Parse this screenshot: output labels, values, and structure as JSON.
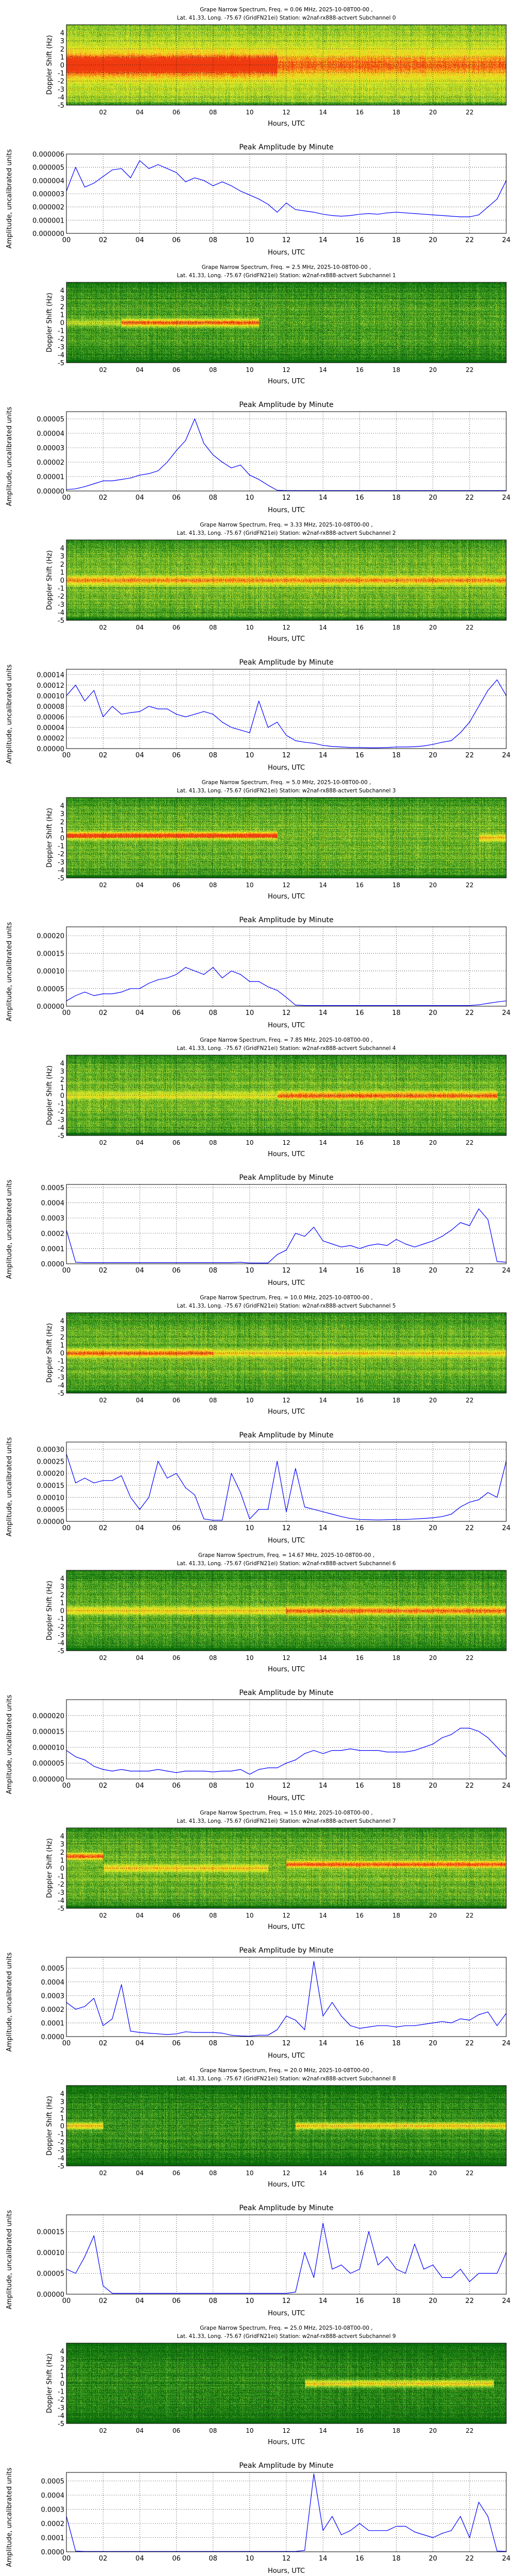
{
  "shared": {
    "spectrogram_ylabel": "Doppler Shift (Hz)",
    "spectrogram_yticks": [
      "-5",
      "-4",
      "-3",
      "-2",
      "-1",
      "0",
      "1",
      "2",
      "3",
      "4"
    ],
    "spectrogram_xticks": [
      "02",
      "04",
      "06",
      "08",
      "10",
      "12",
      "14",
      "16",
      "18",
      "20",
      "22"
    ],
    "xlabel": "Hours, UTC",
    "amplitude_title": "Peak Amplitude by Minute",
    "amplitude_ylabel": "Amplitude, uncalibrated units",
    "amplitude_xticks": [
      "00",
      "02",
      "04",
      "06",
      "08",
      "10",
      "12",
      "14",
      "16",
      "18",
      "20",
      "22",
      "24"
    ],
    "hours": [
      0,
      0.5,
      1,
      1.5,
      2,
      2.5,
      3,
      3.5,
      4,
      4.5,
      5,
      5.5,
      6,
      6.5,
      7,
      7.5,
      8,
      8.5,
      9,
      9.5,
      10,
      10.5,
      11,
      11.5,
      12,
      12.5,
      13,
      13.5,
      14,
      14.5,
      15,
      15.5,
      16,
      16.5,
      17,
      17.5,
      18,
      18.5,
      19,
      19.5,
      20,
      20.5,
      21,
      21.5,
      22,
      22.5,
      23,
      23.5,
      24
    ],
    "line_color": "#0000ff",
    "colormap": [
      "#0a6a0a",
      "#3f9e22",
      "#a8d22e",
      "#eef020",
      "#f8a820",
      "#f03a10"
    ]
  },
  "chart_data": [
    {
      "type": "heatmap",
      "title_line1": "Grape Narrow Spectrum, Freq. = 0.06 MHz, 2025-10-08T00-00 ,",
      "title_line2": "Lat.  41.33, Long. -75.67 (GridFN21ei) Station: w2naf-rx888-actvert Subchannel 0",
      "xlim": [
        0,
        24
      ],
      "ylim": [
        -5,
        5
      ],
      "background": 0.5,
      "band_width_hz": 1.3,
      "signal_segments": [
        {
          "hours": [
            0,
            11.5
          ],
          "doppler_hz": 0,
          "strength": 0.85
        },
        {
          "hours": [
            11.5,
            24
          ],
          "doppler_hz": 0,
          "strength": 0.45
        }
      ]
    },
    {
      "type": "line",
      "ylim": [
        0,
        6e-06
      ],
      "yticks": [
        "0.000000",
        "0.000001",
        "0.000002",
        "0.000003",
        "0.000004",
        "0.000005",
        "0.000006"
      ],
      "xlim": [
        0,
        24
      ],
      "values": [
        3.2e-06,
        5e-06,
        3.5e-06,
        3.8e-06,
        4.3e-06,
        4.8e-06,
        4.9e-06,
        4.2e-06,
        5.5e-06,
        4.9e-06,
        5.2e-06,
        4.9e-06,
        4.6e-06,
        3.9e-06,
        4.2e-06,
        4e-06,
        3.6e-06,
        3.9e-06,
        3.6e-06,
        3.2e-06,
        2.9e-06,
        2.6e-06,
        2.2e-06,
        1.6e-06,
        2.3e-06,
        1.8e-06,
        1.7e-06,
        1.6e-06,
        1.45e-06,
        1.35e-06,
        1.3e-06,
        1.35e-06,
        1.45e-06,
        1.5e-06,
        1.45e-06,
        1.55e-06,
        1.6e-06,
        1.55e-06,
        1.5e-06,
        1.45e-06,
        1.4e-06,
        1.35e-06,
        1.3e-06,
        1.25e-06,
        1.25e-06,
        1.4e-06,
        2e-06,
        2.6e-06,
        4e-06
      ]
    },
    {
      "type": "heatmap",
      "title_line1": "Grape Narrow Spectrum, Freq. = 2.5 MHz, 2025-10-08T00-00 ,",
      "title_line2": "Lat.  41.33, Long. -75.67 (GridFN21ei) Station: w2naf-rx888-actvert Subchannel 1",
      "xlim": [
        0,
        24
      ],
      "ylim": [
        -5,
        5
      ],
      "background": 0.22,
      "band_width_hz": 0.45,
      "signal_segments": [
        {
          "hours": [
            3,
            10.5
          ],
          "doppler_hz": 0,
          "strength": 0.75
        },
        {
          "hours": [
            0,
            3
          ],
          "doppler_hz": 0,
          "strength": 0.25
        }
      ]
    },
    {
      "type": "line",
      "ylim": [
        0,
        5.5e-05
      ],
      "yticks": [
        "0.00000",
        "0.00001",
        "0.00002",
        "0.00003",
        "0.00004",
        "0.00005"
      ],
      "xlim": [
        0,
        24
      ],
      "values": [
        1e-06,
        1.5e-06,
        3e-06,
        5e-06,
        7e-06,
        7e-06,
        8e-06,
        9e-06,
        1.1e-05,
        1.2e-05,
        1.4e-05,
        2e-05,
        2.8e-05,
        3.5e-05,
        5e-05,
        3.3e-05,
        2.5e-05,
        2e-05,
        1.6e-05,
        1.8e-05,
        1.1e-05,
        8e-06,
        4e-06,
        5e-07,
        3e-07,
        3e-07,
        3e-07,
        3e-07,
        3e-07,
        3e-07,
        3e-07,
        3e-07,
        3e-07,
        3e-07,
        3e-07,
        3e-07,
        3e-07,
        3e-07,
        3e-07,
        3e-07,
        3e-07,
        3e-07,
        3e-07,
        3e-07,
        3e-07,
        3e-07,
        3e-07,
        3e-07,
        3e-07
      ]
    },
    {
      "type": "heatmap",
      "title_line1": "Grape Narrow Spectrum, Freq. = 3.33 MHz, 2025-10-08T00-00 ,",
      "title_line2": "Lat.  41.33, Long. -75.67 (GridFN21ei) Station: w2naf-rx888-actvert Subchannel 2",
      "xlim": [
        0,
        24
      ],
      "ylim": [
        -5,
        5
      ],
      "background": 0.32,
      "band_width_hz": 0.5,
      "signal_segments": [
        {
          "hours": [
            0,
            24
          ],
          "doppler_hz": 0,
          "strength": 0.55
        }
      ]
    },
    {
      "type": "line",
      "ylim": [
        0,
        0.00015
      ],
      "yticks": [
        "0.00000",
        "0.00002",
        "0.00004",
        "0.00006",
        "0.00008",
        "0.00010",
        "0.00012",
        "0.00014"
      ],
      "xlim": [
        0,
        24
      ],
      "values": [
        0.0001,
        0.00012,
        9e-05,
        0.00011,
        6e-05,
        8e-05,
        6.5e-05,
        6.8e-05,
        7e-05,
        8e-05,
        7.5e-05,
        7.5e-05,
        6.5e-05,
        6e-05,
        6.5e-05,
        7e-05,
        6.5e-05,
        5e-05,
        4e-05,
        3.5e-05,
        3e-05,
        9e-05,
        4e-05,
        5e-05,
        2.5e-05,
        1.5e-05,
        1.2e-05,
        1e-05,
        6e-06,
        4e-06,
        3e-06,
        2e-06,
        2e-06,
        1.5e-06,
        1.5e-06,
        2e-06,
        3e-06,
        3e-06,
        3.5e-06,
        5e-06,
        8e-06,
        1.2e-05,
        1.5e-05,
        3e-05,
        5e-05,
        8e-05,
        0.00011,
        0.00013,
        0.0001
      ]
    },
    {
      "type": "heatmap",
      "title_line1": "Grape Narrow Spectrum, Freq. = 5.0 MHz, 2025-10-08T00-00 ,",
      "title_line2": "Lat.  41.33, Long. -75.67 (GridFN21ei) Station: w2naf-rx888-actvert Subchannel 3",
      "xlim": [
        0,
        24
      ],
      "ylim": [
        -5,
        5
      ],
      "background": 0.3,
      "band_width_hz": 0.4,
      "signal_segments": [
        {
          "hours": [
            0,
            11.5
          ],
          "doppler_hz": 0.3,
          "strength": 0.85
        },
        {
          "hours": [
            22.5,
            24
          ],
          "doppler_hz": 0,
          "strength": 0.45
        }
      ]
    },
    {
      "type": "line",
      "ylim": [
        0,
        0.000225
      ],
      "yticks": [
        "0.00000",
        "0.00005",
        "0.00010",
        "0.00015",
        "0.00020"
      ],
      "xlim": [
        0,
        24
      ],
      "values": [
        1.5e-05,
        3e-05,
        4e-05,
        3e-05,
        3.5e-05,
        3.5e-05,
        4e-05,
        5e-05,
        5e-05,
        6.5e-05,
        7.5e-05,
        8e-05,
        9e-05,
        0.00011,
        0.0001,
        9e-05,
        0.00011,
        8e-05,
        0.0001,
        9e-05,
        7e-05,
        7e-05,
        5.5e-05,
        4.5e-05,
        2.5e-05,
        3e-06,
        2e-06,
        2e-06,
        2e-06,
        2e-06,
        2e-06,
        2e-06,
        2e-06,
        2e-06,
        2e-06,
        2e-06,
        2e-06,
        2e-06,
        2e-06,
        2e-06,
        2e-06,
        2e-06,
        2e-06,
        2e-06,
        2e-06,
        4e-06,
        8e-06,
        1.2e-05,
        1.5e-05
      ]
    },
    {
      "type": "heatmap",
      "title_line1": "Grape Narrow Spectrum, Freq. = 7.85 MHz, 2025-10-08T00-00 ,",
      "title_line2": "Lat.  41.33, Long. -75.67 (GridFN21ei) Station: w2naf-rx888-actvert Subchannel 4",
      "xlim": [
        0,
        24
      ],
      "ylim": [
        -5,
        5
      ],
      "background": 0.3,
      "band_width_hz": 0.45,
      "signal_segments": [
        {
          "hours": [
            11.5,
            23.5
          ],
          "doppler_hz": 0,
          "strength": 0.7
        },
        {
          "hours": [
            0,
            11.5
          ],
          "doppler_hz": 0,
          "strength": 0.3
        }
      ]
    },
    {
      "type": "line",
      "ylim": [
        0,
        0.00052
      ],
      "yticks": [
        "0.0000",
        "0.0001",
        "0.0002",
        "0.0003",
        "0.0004",
        "0.0005"
      ],
      "xlim": [
        0,
        24
      ],
      "values": [
        0.00022,
        1e-05,
        8e-06,
        8e-06,
        8e-06,
        8e-06,
        8e-06,
        8e-06,
        8e-06,
        8e-06,
        8e-06,
        8e-06,
        8e-06,
        8e-06,
        8e-06,
        8e-06,
        8e-06,
        8e-06,
        8e-06,
        1e-05,
        5e-06,
        5e-06,
        5e-06,
        6e-05,
        9e-05,
        0.0002,
        0.00018,
        0.00024,
        0.00015,
        0.00013,
        0.00011,
        0.00012,
        0.0001,
        0.00012,
        0.00013,
        0.00012,
        0.00016,
        0.00013,
        0.00011,
        0.00013,
        0.00015,
        0.00018,
        0.00022,
        0.00027,
        0.00025,
        0.00036,
        0.00029,
        1.5e-05,
        1e-05
      ]
    },
    {
      "type": "heatmap",
      "title_line1": "Grape Narrow Spectrum, Freq. = 10.0 MHz, 2025-10-08T00-00 ,",
      "title_line2": "Lat.  41.33, Long. -75.67 (GridFN21ei) Station: w2naf-rx888-actvert Subchannel 5",
      "xlim": [
        0,
        24
      ],
      "ylim": [
        -5,
        5
      ],
      "background": 0.3,
      "band_width_hz": 0.45,
      "signal_segments": [
        {
          "hours": [
            0,
            8
          ],
          "doppler_hz": 0,
          "strength": 0.7
        },
        {
          "hours": [
            8,
            24
          ],
          "doppler_hz": 0,
          "strength": 0.45
        }
      ]
    },
    {
      "type": "line",
      "ylim": [
        0,
        0.00033
      ],
      "yticks": [
        "0.00000",
        "0.00005",
        "0.00010",
        "0.00015",
        "0.00020",
        "0.00025",
        "0.00030"
      ],
      "xlim": [
        0,
        24
      ],
      "values": [
        0.00028,
        0.00016,
        0.00018,
        0.00016,
        0.00017,
        0.00017,
        0.00019,
        0.0001,
        5e-05,
        0.0001,
        0.00025,
        0.00018,
        0.0002,
        0.00014,
        0.00011,
        1e-05,
        5e-06,
        5e-06,
        0.0002,
        0.00012,
        1e-05,
        5e-05,
        5e-05,
        0.00025,
        4e-05,
        0.00022,
        6e-05,
        5e-05,
        4e-05,
        3e-05,
        2e-05,
        1.2e-05,
        8e-06,
        7e-06,
        6e-06,
        7e-06,
        8e-06,
        8e-06,
        1e-05,
        1.2e-05,
        1.5e-05,
        2e-05,
        3e-05,
        6e-05,
        8e-05,
        9e-05,
        0.00012,
        0.0001,
        0.00025
      ]
    },
    {
      "type": "heatmap",
      "title_line1": "Grape Narrow Spectrum, Freq. = 14.67 MHz, 2025-10-08T00-00 ,",
      "title_line2": "Lat.  41.33, Long. -75.67 (GridFN21ei) Station: w2naf-rx888-actvert Subchannel 6",
      "xlim": [
        0,
        24
      ],
      "ylim": [
        -5,
        5
      ],
      "background": 0.25,
      "band_width_hz": 0.5,
      "signal_segments": [
        {
          "hours": [
            0,
            12
          ],
          "doppler_hz": 0,
          "strength": 0.45
        },
        {
          "hours": [
            12,
            24
          ],
          "doppler_hz": 0,
          "strength": 0.7
        }
      ]
    },
    {
      "type": "line",
      "ylim": [
        0,
        2.5e-05
      ],
      "yticks": [
        "0.000000",
        "0.000005",
        "0.000010",
        "0.000015",
        "0.000020"
      ],
      "xlim": [
        0,
        24
      ],
      "values": [
        9e-06,
        7e-06,
        6e-06,
        4e-06,
        3e-06,
        2.5e-06,
        3e-06,
        2.5e-06,
        2.5e-06,
        2.5e-06,
        3e-06,
        2.5e-06,
        2e-06,
        2.5e-06,
        2.5e-06,
        2.5e-06,
        2.2e-06,
        2.5e-06,
        2.5e-06,
        3e-06,
        1.5e-06,
        3e-06,
        3.5e-06,
        3.5e-06,
        5e-06,
        6e-06,
        8e-06,
        9e-06,
        8e-06,
        9e-06,
        9e-06,
        9.5e-06,
        9e-06,
        9e-06,
        9e-06,
        8.5e-06,
        8.5e-06,
        8.5e-06,
        9e-06,
        1e-05,
        1.1e-05,
        1.3e-05,
        1.4e-05,
        1.6e-05,
        1.6e-05,
        1.5e-05,
        1.3e-05,
        1e-05,
        7e-06
      ]
    },
    {
      "type": "heatmap",
      "title_line1": "Grape Narrow Spectrum, Freq. = 15.0 MHz, 2025-10-08T00-00 ,",
      "title_line2": "Lat.  41.33, Long. -75.67 (GridFN21ei) Station: w2naf-rx888-actvert Subchannel 7",
      "xlim": [
        0,
        24
      ],
      "ylim": [
        -5,
        5
      ],
      "background": 0.3,
      "band_width_hz": 0.4,
      "signal_segments": [
        {
          "hours": [
            0,
            2
          ],
          "doppler_hz": 1.5,
          "strength": 0.7
        },
        {
          "hours": [
            2,
            11
          ],
          "doppler_hz": 0,
          "strength": 0.45
        },
        {
          "hours": [
            12,
            24
          ],
          "doppler_hz": 0.5,
          "strength": 0.7
        }
      ]
    },
    {
      "type": "line",
      "ylim": [
        0,
        0.00058
      ],
      "yticks": [
        "0.0000",
        "0.0001",
        "0.0002",
        "0.0003",
        "0.0004",
        "0.0005"
      ],
      "xlim": [
        0,
        24
      ],
      "values": [
        0.00025,
        0.0002,
        0.00022,
        0.00028,
        8e-05,
        0.00013,
        0.00038,
        4e-05,
        3e-05,
        2.5e-05,
        2e-05,
        1.5e-05,
        2e-05,
        3.5e-05,
        3e-05,
        3e-05,
        3e-05,
        2.5e-05,
        1e-05,
        5e-06,
        3e-06,
        1e-05,
        1e-05,
        5e-05,
        0.00015,
        0.00012,
        5e-05,
        0.00055,
        0.00015,
        0.00025,
        0.00015,
        8e-05,
        6e-05,
        7e-05,
        8e-05,
        8e-05,
        7e-05,
        8e-05,
        8e-05,
        9e-05,
        0.0001,
        0.00011,
        0.0001,
        0.00013,
        0.00012,
        0.00016,
        0.00018,
        8e-05,
        0.00017
      ]
    },
    {
      "type": "heatmap",
      "title_line1": "Grape Narrow Spectrum, Freq. = 20.0 MHz, 2025-10-08T00-00 ,",
      "title_line2": "Lat.  41.33, Long. -75.67 (GridFN21ei) Station: w2naf-rx888-actvert Subchannel 8",
      "xlim": [
        0,
        24
      ],
      "ylim": [
        -5,
        5
      ],
      "background": 0.15,
      "band_width_hz": 0.4,
      "signal_segments": [
        {
          "hours": [
            0,
            2
          ],
          "doppler_hz": 0,
          "strength": 0.6
        },
        {
          "hours": [
            12.5,
            24
          ],
          "doppler_hz": 0,
          "strength": 0.6
        }
      ]
    },
    {
      "type": "line",
      "ylim": [
        0,
        0.00019
      ],
      "yticks": [
        "0.00000",
        "0.00005",
        "0.00010",
        "0.00015"
      ],
      "xlim": [
        0,
        24
      ],
      "values": [
        6e-05,
        5e-05,
        9e-05,
        0.00014,
        2e-05,
        2e-06,
        2e-06,
        2e-06,
        2e-06,
        2e-06,
        2e-06,
        2e-06,
        2e-06,
        2e-06,
        2e-06,
        2e-06,
        2e-06,
        2e-06,
        2e-06,
        2e-06,
        2e-06,
        2e-06,
        2e-06,
        2e-06,
        2e-06,
        5e-06,
        0.0001,
        4e-05,
        0.00017,
        6e-05,
        7e-05,
        5e-05,
        6e-05,
        0.00015,
        7e-05,
        9e-05,
        6e-05,
        5e-05,
        0.00012,
        6e-05,
        7e-05,
        4e-05,
        4e-05,
        6e-05,
        3e-05,
        5e-05,
        5e-05,
        5e-05,
        0.0001
      ]
    },
    {
      "type": "heatmap",
      "title_line1": "Grape Narrow Spectrum, Freq. = 25.0 MHz, 2025-10-08T00-00 ,",
      "title_line2": "Lat.  41.33, Long. -75.67 (GridFN21ei) Station: w2naf-rx888-actvert Subchannel 9",
      "xlim": [
        0,
        24
      ],
      "ylim": [
        -5,
        5
      ],
      "background": 0.12,
      "band_width_hz": 0.4,
      "signal_segments": [
        {
          "hours": [
            13,
            23.3
          ],
          "doppler_hz": 0,
          "strength": 0.6
        }
      ]
    },
    {
      "type": "line",
      "ylim": [
        0,
        0.00056
      ],
      "yticks": [
        "0.0000",
        "0.0001",
        "0.0002",
        "0.0003",
        "0.0004",
        "0.0005"
      ],
      "xlim": [
        0,
        24
      ],
      "values": [
        0.00025,
        5e-06,
        2e-06,
        2e-06,
        2e-06,
        2e-06,
        2e-06,
        2e-06,
        2e-06,
        2e-06,
        2e-06,
        2e-06,
        2e-06,
        2e-06,
        2e-06,
        2e-06,
        2e-06,
        2e-06,
        2e-06,
        2e-06,
        2e-06,
        2e-06,
        2e-06,
        2e-06,
        2e-06,
        2e-06,
        1e-05,
        0.00055,
        0.00015,
        0.00025,
        0.00012,
        0.00015,
        0.0002,
        0.00015,
        0.00015,
        0.00015,
        0.00018,
        0.00018,
        0.00014,
        0.00012,
        0.0001,
        0.00013,
        0.00015,
        0.00025,
        0.0001,
        0.00035,
        0.00025,
        5e-06,
        3e-06
      ]
    }
  ]
}
